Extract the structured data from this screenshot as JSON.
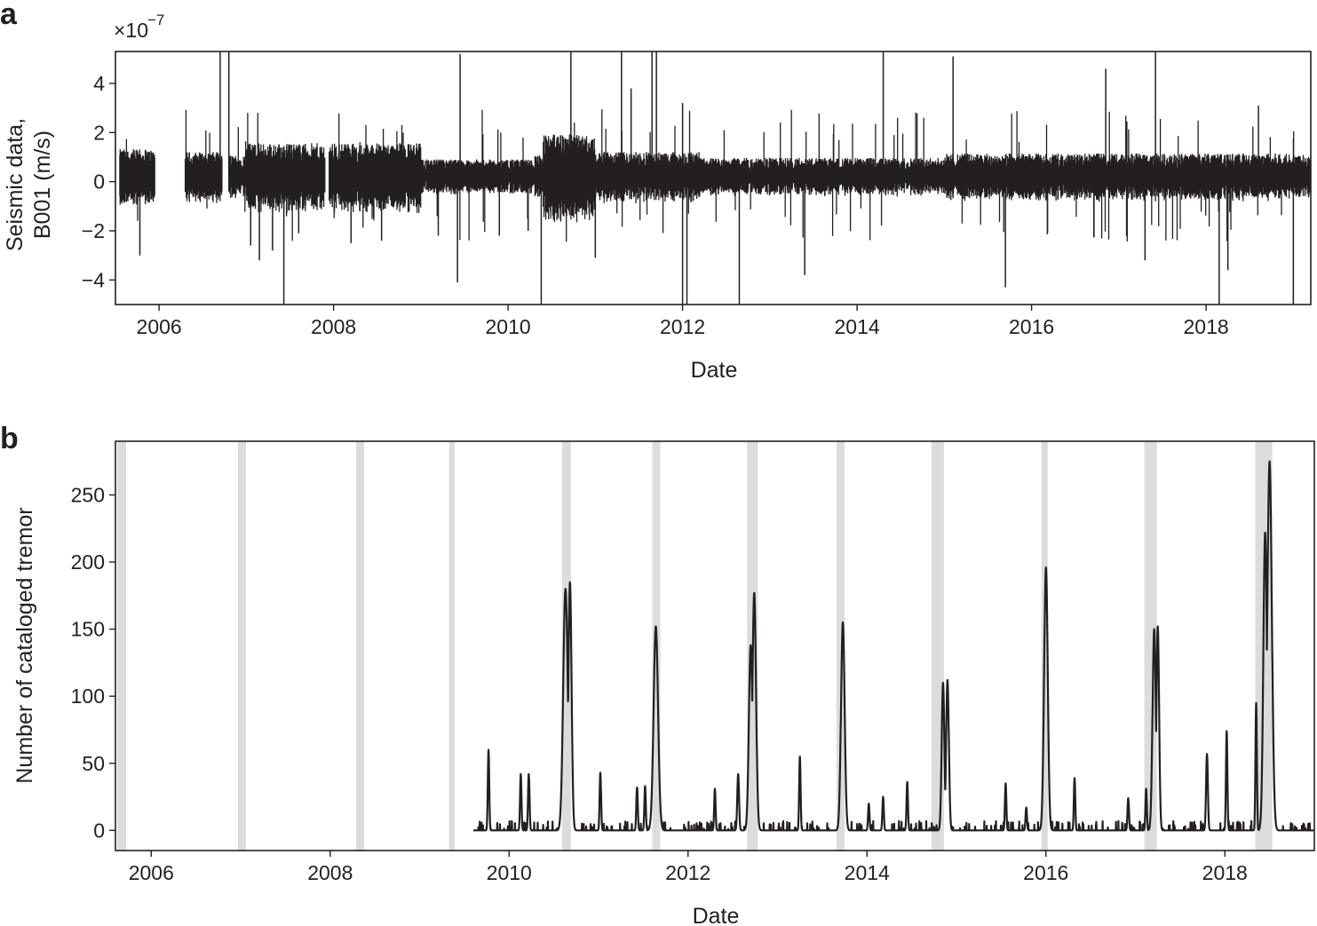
{
  "chart_data": [
    {
      "panel": "a",
      "type": "line",
      "xlabel": "Date",
      "ylabel": "Seismic data,",
      "ylabel_line2": "B001 (m/s)",
      "scale_multiplier": "×10",
      "scale_exponent": "−7",
      "xlim": [
        2005.5,
        2019.2
      ],
      "ylim": [
        -5,
        5.3
      ],
      "x_ticks": [
        2006,
        2008,
        2010,
        2012,
        2014,
        2016,
        2018
      ],
      "x_tick_labels": [
        "2006",
        "2008",
        "2010",
        "2012",
        "2014",
        "2016",
        "2018"
      ],
      "y_ticks": [
        -4,
        -2,
        0,
        2,
        4
      ],
      "y_tick_labels": [
        "−4",
        "−2",
        "0",
        "2",
        "4"
      ],
      "grid": false,
      "color": "#231f20",
      "data_segments": [
        [
          2005.55,
          2005.95
        ],
        [
          2006.3,
          2006.72
        ],
        [
          2006.8,
          2007.9
        ],
        [
          2007.95,
          2009.05
        ],
        [
          2009.06,
          2019.2
        ]
      ],
      "spikes": [
        {
          "x": 2005.78,
          "y": -3.0
        },
        {
          "x": 2006.7,
          "y": 5.3
        },
        {
          "x": 2006.8,
          "y": 5.3
        },
        {
          "x": 2007.05,
          "y": -2.6
        },
        {
          "x": 2007.15,
          "y": -3.2
        },
        {
          "x": 2007.3,
          "y": -2.8
        },
        {
          "x": 2007.43,
          "y": -5.0
        },
        {
          "x": 2007.6,
          "y": -2.1
        },
        {
          "x": 2008.2,
          "y": -2.5
        },
        {
          "x": 2008.55,
          "y": -2.4
        },
        {
          "x": 2009.2,
          "y": -2.2
        },
        {
          "x": 2009.45,
          "y": 5.2
        },
        {
          "x": 2009.42,
          "y": -4.1
        },
        {
          "x": 2009.9,
          "y": -2.2
        },
        {
          "x": 2010.23,
          "y": -2.0
        },
        {
          "x": 2010.38,
          "y": -5.0
        },
        {
          "x": 2010.72,
          "y": 5.3
        },
        {
          "x": 2011.0,
          "y": -3.1
        },
        {
          "x": 2011.3,
          "y": 5.3
        },
        {
          "x": 2011.41,
          "y": 3.8
        },
        {
          "x": 2011.65,
          "y": 5.3
        },
        {
          "x": 2011.7,
          "y": 5.3
        },
        {
          "x": 2012.0,
          "y": 3.2
        },
        {
          "x": 2012.0,
          "y": -5.0
        },
        {
          "x": 2012.05,
          "y": -5.0
        },
        {
          "x": 2012.65,
          "y": -5.0
        },
        {
          "x": 2013.4,
          "y": -3.8
        },
        {
          "x": 2014.3,
          "y": 5.3
        },
        {
          "x": 2015.1,
          "y": 5.1
        },
        {
          "x": 2015.7,
          "y": -4.3
        },
        {
          "x": 2016.85,
          "y": 4.6
        },
        {
          "x": 2017.3,
          "y": -3.2
        },
        {
          "x": 2017.42,
          "y": 5.3
        },
        {
          "x": 2018.15,
          "y": -5.0
        },
        {
          "x": 2018.25,
          "y": -3.6
        },
        {
          "x": 2018.6,
          "y": 3.1
        },
        {
          "x": 2019.0,
          "y": -5.0
        }
      ]
    },
    {
      "panel": "b",
      "type": "line",
      "xlabel": "Date",
      "ylabel": "Number of cataloged tremor",
      "xlim": [
        2005.6,
        2019.0
      ],
      "ylim": [
        -15,
        290
      ],
      "x_ticks": [
        2006,
        2008,
        2010,
        2012,
        2014,
        2016,
        2018
      ],
      "x_tick_labels": [
        "2006",
        "2008",
        "2010",
        "2012",
        "2014",
        "2016",
        "2018"
      ],
      "y_ticks": [
        0,
        50,
        100,
        150,
        200,
        250
      ],
      "y_tick_labels": [
        "0",
        "50",
        "100",
        "150",
        "200",
        "250"
      ],
      "grid": false,
      "color": "#231f20",
      "shade_color": "#dcdcdc",
      "shaded_intervals": [
        [
          2005.62,
          2005.72
        ],
        [
          2006.97,
          2007.06
        ],
        [
          2008.29,
          2008.38
        ],
        [
          2009.33,
          2009.39
        ],
        [
          2010.59,
          2010.69
        ],
        [
          2011.6,
          2011.69
        ],
        [
          2012.66,
          2012.78
        ],
        [
          2013.66,
          2013.75
        ],
        [
          2014.72,
          2014.86
        ],
        [
          2015.95,
          2016.02
        ],
        [
          2017.1,
          2017.24
        ],
        [
          2018.34,
          2018.53
        ]
      ],
      "catalog_start": 2009.6,
      "catalog_end": 2019.0,
      "peaks": [
        {
          "x": 2009.77,
          "y": 60,
          "w": 0.008
        },
        {
          "x": 2010.13,
          "y": 42,
          "w": 0.008
        },
        {
          "x": 2010.22,
          "y": 42,
          "w": 0.008
        },
        {
          "x": 2010.63,
          "y": 180,
          "w": 0.025
        },
        {
          "x": 2010.68,
          "y": 185,
          "w": 0.018
        },
        {
          "x": 2011.02,
          "y": 43,
          "w": 0.008
        },
        {
          "x": 2011.43,
          "y": 32,
          "w": 0.008
        },
        {
          "x": 2011.52,
          "y": 33,
          "w": 0.008
        },
        {
          "x": 2011.64,
          "y": 152,
          "w": 0.025
        },
        {
          "x": 2012.3,
          "y": 31,
          "w": 0.008
        },
        {
          "x": 2012.56,
          "y": 42,
          "w": 0.01
        },
        {
          "x": 2012.7,
          "y": 138,
          "w": 0.02
        },
        {
          "x": 2012.74,
          "y": 177,
          "w": 0.02
        },
        {
          "x": 2013.25,
          "y": 55,
          "w": 0.008
        },
        {
          "x": 2013.73,
          "y": 155,
          "w": 0.02
        },
        {
          "x": 2014.02,
          "y": 20,
          "w": 0.008
        },
        {
          "x": 2014.18,
          "y": 25,
          "w": 0.008
        },
        {
          "x": 2014.45,
          "y": 36,
          "w": 0.008
        },
        {
          "x": 2014.85,
          "y": 110,
          "w": 0.015
        },
        {
          "x": 2014.9,
          "y": 112,
          "w": 0.015
        },
        {
          "x": 2015.55,
          "y": 35,
          "w": 0.008
        },
        {
          "x": 2015.78,
          "y": 17,
          "w": 0.008
        },
        {
          "x": 2016.0,
          "y": 196,
          "w": 0.02
        },
        {
          "x": 2016.32,
          "y": 39,
          "w": 0.008
        },
        {
          "x": 2016.92,
          "y": 24,
          "w": 0.008
        },
        {
          "x": 2017.12,
          "y": 31,
          "w": 0.008
        },
        {
          "x": 2017.21,
          "y": 150,
          "w": 0.018
        },
        {
          "x": 2017.25,
          "y": 152,
          "w": 0.015
        },
        {
          "x": 2017.8,
          "y": 57,
          "w": 0.01
        },
        {
          "x": 2018.02,
          "y": 74,
          "w": 0.008
        },
        {
          "x": 2018.35,
          "y": 95,
          "w": 0.008
        },
        {
          "x": 2018.5,
          "y": 275,
          "w": 0.025
        },
        {
          "x": 2018.45,
          "y": 222,
          "w": 0.02
        }
      ]
    }
  ]
}
